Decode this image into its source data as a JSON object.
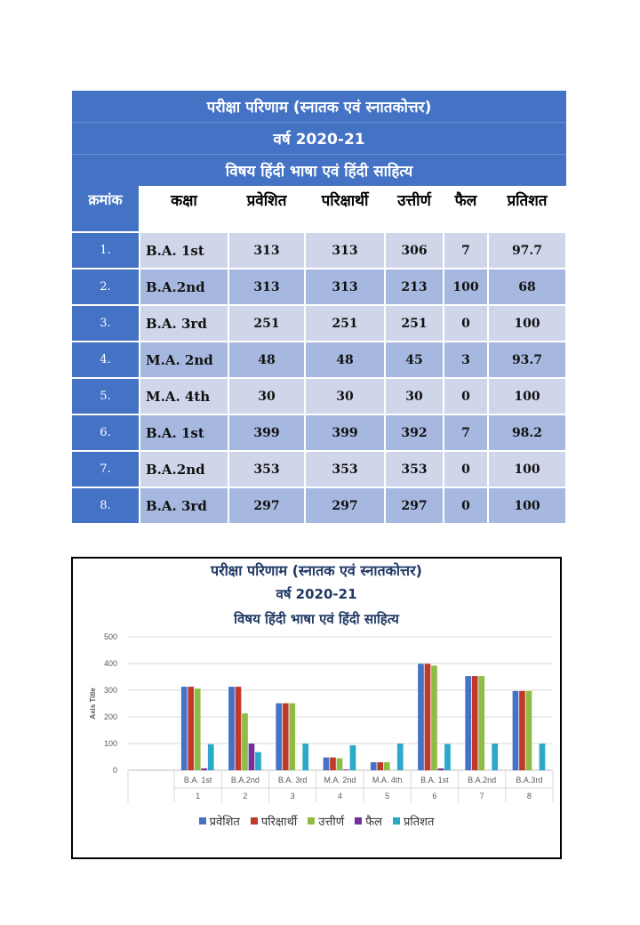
{
  "table": {
    "title_lines": [
      "परीक्षा परिणाम (स्नातक एवं स्नातकोत्तर)",
      "वर्ष 2020-21",
      "विषय हिंदी भाषा एवं हिंदी साहित्य"
    ],
    "headers": [
      "क्रमांक",
      "कक्षा",
      "प्रवेशित",
      "परिक्षार्थी",
      "उत्तीर्ण",
      "फैल",
      "प्रतिशत"
    ],
    "rows": [
      [
        "1.",
        "B.A. 1st",
        "313",
        "313",
        "306",
        "7",
        "97.7"
      ],
      [
        "2.",
        "B.A.2nd",
        "313",
        "313",
        "213",
        "100",
        "68"
      ],
      [
        "3.",
        "B.A. 3rd",
        "251",
        "251",
        "251",
        "0",
        "100"
      ],
      [
        "4.",
        "M.A. 2nd",
        "48",
        "48",
        "45",
        "3",
        "93.7"
      ],
      [
        "5.",
        "M.A. 4th",
        "30",
        "30",
        "30",
        "0",
        "100"
      ],
      [
        "6.",
        "B.A. 1st",
        "399",
        "399",
        "392",
        "7",
        "98.2"
      ],
      [
        "7.",
        "B.A.2nd",
        "353",
        "353",
        "353",
        "0",
        "100"
      ],
      [
        "8.",
        "B.A. 3rd",
        "297",
        "297",
        "297",
        "0",
        "100"
      ]
    ]
  },
  "chart_data": {
    "type": "bar",
    "title": "परीक्षा परिणाम (स्नातक एवं स्नातकोत्तर)",
    "subtitle_lines": [
      "वर्ष 2020-21",
      "विषय हिंदी भाषा एवं हिंदी साहित्य"
    ],
    "ylabel": "Axis Title",
    "xlabel": "",
    "ylim": [
      0,
      500
    ],
    "yticks": [
      0,
      100,
      200,
      300,
      400,
      500
    ],
    "grid": true,
    "legend_position": "bottom",
    "categories": [
      "B.A. 1st",
      "B.A.2nd",
      "B.A. 3rd",
      "M.A. 2nd",
      "M.A. 4th",
      "B.A. 1st",
      "B.A.2nd",
      "B.A.3rd"
    ],
    "category_groups": [
      "1",
      "2",
      "3",
      "4",
      "5",
      "6",
      "7",
      "8"
    ],
    "series": [
      {
        "name": "प्रवेशित",
        "color": "#4472c4",
        "values": [
          313,
          313,
          251,
          48,
          30,
          399,
          353,
          297
        ]
      },
      {
        "name": "परिक्षार्थी",
        "color": "#c0392b",
        "values": [
          313,
          313,
          251,
          48,
          30,
          399,
          353,
          297
        ]
      },
      {
        "name": "उत्तीर्ण",
        "color": "#8fbc45",
        "values": [
          306,
          213,
          251,
          45,
          30,
          392,
          353,
          297
        ]
      },
      {
        "name": "फैल",
        "color": "#7030a0",
        "values": [
          7,
          100,
          0,
          3,
          0,
          7,
          0,
          0
        ]
      },
      {
        "name": "प्रतिशत",
        "color": "#2aa9c9",
        "values": [
          97.7,
          68,
          100,
          93.7,
          100,
          98.2,
          100,
          100
        ]
      }
    ]
  }
}
